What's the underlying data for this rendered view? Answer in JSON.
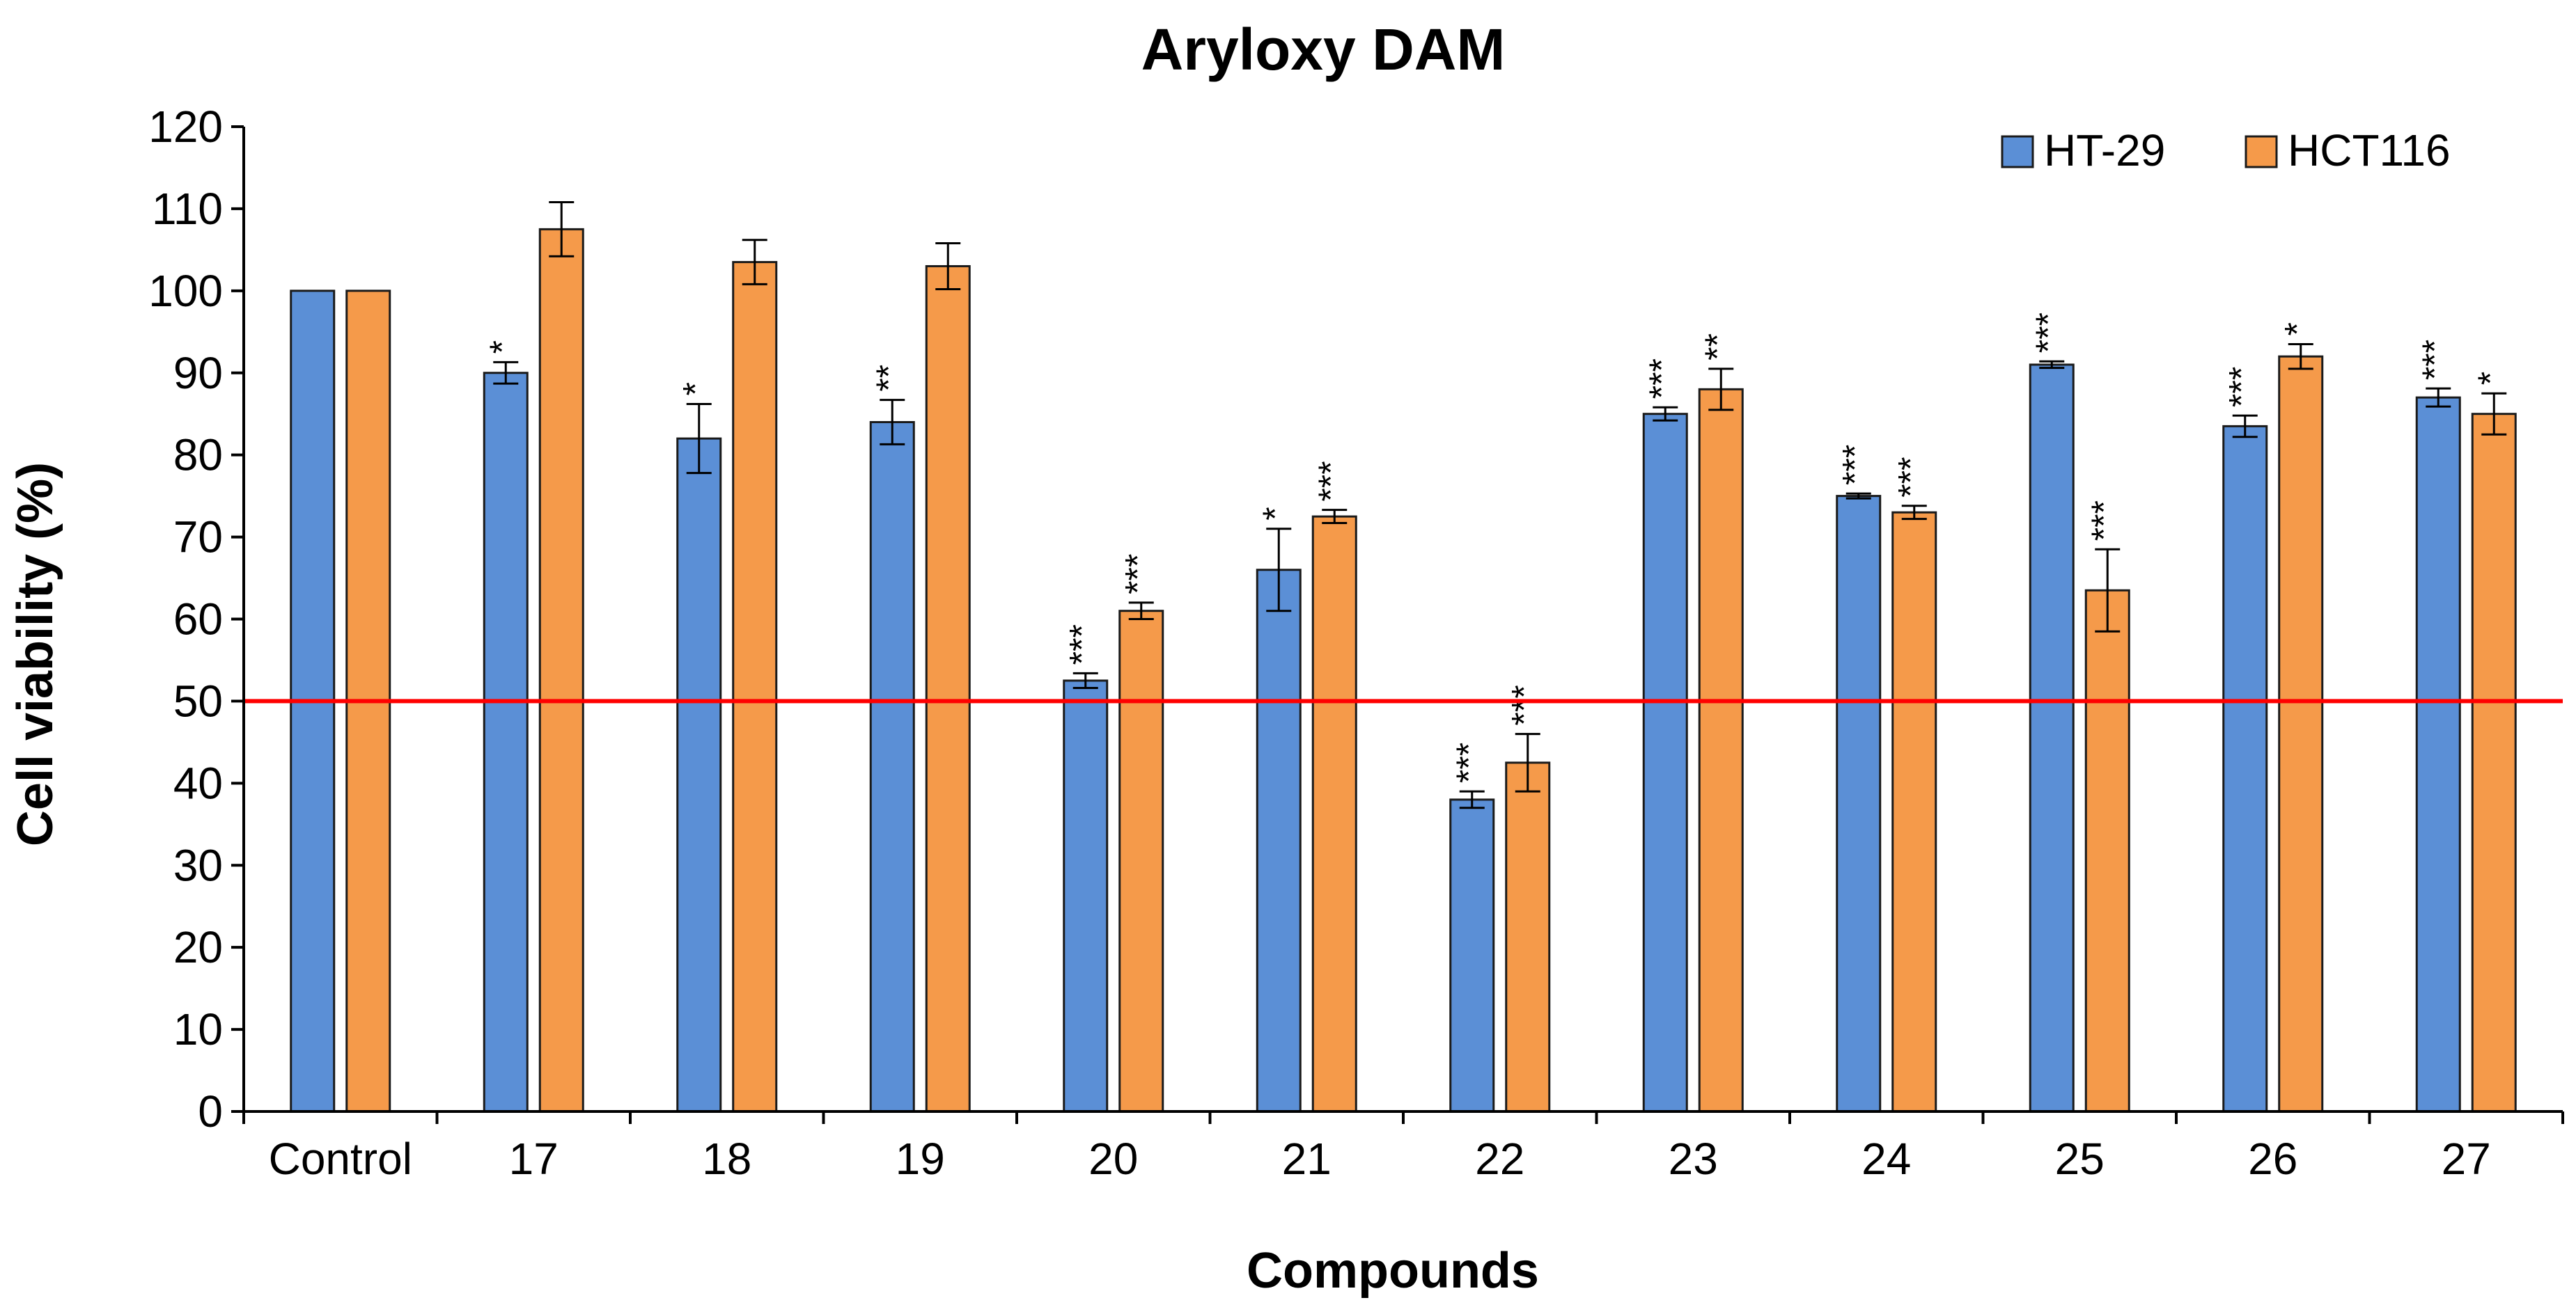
{
  "chart_data": {
    "type": "bar",
    "title": "Aryloxy DAM",
    "xlabel": "Compounds",
    "ylabel": "Cell viability (%)",
    "ylim": [
      0,
      120
    ],
    "ytick_step": 10,
    "yticks": [
      "0",
      "10",
      "20",
      "30",
      "40",
      "50",
      "60",
      "70",
      "80",
      "90",
      "100",
      "110",
      "120"
    ],
    "grid": false,
    "legend_position": "top-right",
    "categories": [
      "Control",
      "17",
      "18",
      "19",
      "20",
      "21",
      "22",
      "23",
      "24",
      "25",
      "26",
      "27"
    ],
    "series": [
      {
        "name": "HT-29",
        "color": "#5B8FD6",
        "values": [
          100,
          90,
          82,
          84,
          52.5,
          66,
          38,
          85,
          75,
          91,
          83.5,
          87
        ],
        "errors": [
          0,
          1.3,
          4.2,
          2.7,
          0.9,
          5,
          1,
          0.8,
          0.3,
          0.4,
          1.3,
          1.1
        ],
        "significance": [
          "",
          "*",
          "*",
          "**",
          "***",
          "*",
          "***",
          "***",
          "***",
          "***",
          "***",
          "***"
        ]
      },
      {
        "name": "HCT116",
        "color": "#F59A4A",
        "values": [
          100,
          107.5,
          103.5,
          103,
          61,
          72.5,
          42.5,
          88,
          73,
          63.5,
          92,
          85
        ],
        "errors": [
          0,
          3.3,
          2.7,
          2.8,
          1,
          0.8,
          3.5,
          2.5,
          0.8,
          5,
          1.5,
          2.5
        ],
        "significance": [
          "",
          "",
          "",
          "",
          "***",
          "***",
          "***",
          "**",
          "***",
          "***",
          "*",
          "*"
        ]
      }
    ],
    "reference_line": {
      "value": 50,
      "color": "#FF0000"
    }
  }
}
